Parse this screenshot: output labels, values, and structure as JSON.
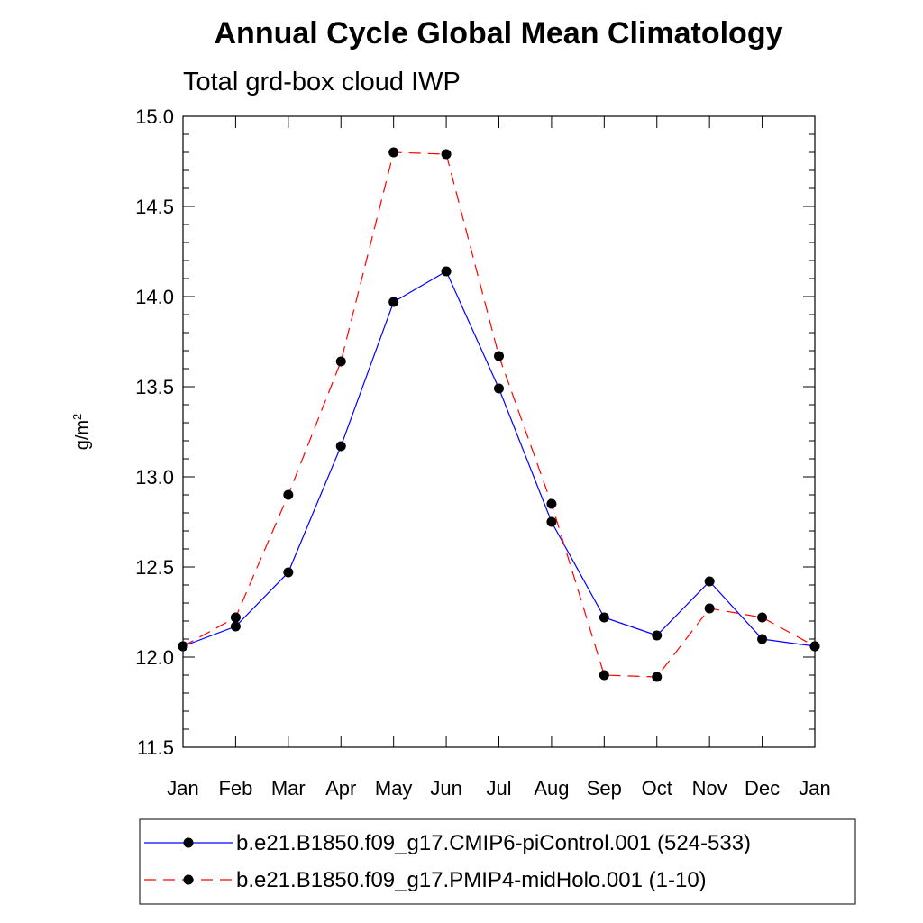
{
  "chart_data": {
    "type": "line",
    "title": "Annual Cycle Global Mean Climatology",
    "subtitle": "Total grd-box cloud IWP",
    "ylabel_main": "g/m",
    "ylabel_sup": "2",
    "xlabel": "",
    "categories": [
      "Jan",
      "Feb",
      "Mar",
      "Apr",
      "May",
      "Jun",
      "Jul",
      "Aug",
      "Sep",
      "Oct",
      "Nov",
      "Dec",
      "Jan"
    ],
    "ylim": [
      11.5,
      15.0
    ],
    "yticks": [
      "11.5",
      "12.0",
      "12.5",
      "13.0",
      "13.5",
      "14.0",
      "14.5",
      "15.0"
    ],
    "series": [
      {
        "name": "b.e21.B1850.f09_g17.CMIP6-piControl.001 (524-533)",
        "color": "#0000ff",
        "dash": "solid",
        "marker": "filled-circle",
        "values": [
          12.06,
          12.17,
          12.47,
          13.17,
          13.97,
          14.14,
          13.49,
          12.75,
          12.22,
          12.12,
          12.42,
          12.1,
          12.06
        ]
      },
      {
        "name": "b.e21.B1850.f09_g17.PMIP4-midHolo.001 (1-10)",
        "color": "#ff0000",
        "dash": "dashed",
        "marker": "filled-circle",
        "values": [
          12.06,
          12.22,
          12.9,
          13.64,
          14.8,
          14.79,
          13.67,
          12.85,
          11.9,
          11.89,
          12.27,
          12.22,
          12.06
        ]
      }
    ]
  }
}
